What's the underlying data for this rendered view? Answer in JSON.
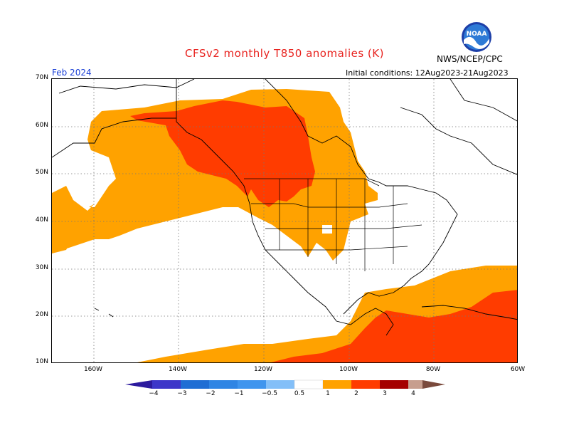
{
  "header": {
    "title": "CFSv2  monthly  T850  anomalies  (K)",
    "org": "NWS/NCEP/CPC",
    "month": "Feb 2024",
    "initial_conditions": "Initial conditions: 12Aug2023-21Aug2023"
  },
  "logo": {
    "text": "NOAA",
    "icon": "noaa-logo"
  },
  "axes": {
    "lat_labels": [
      "70N",
      "60N",
      "50N",
      "40N",
      "30N",
      "20N",
      "10N"
    ],
    "lon_labels": [
      "160W",
      "140W",
      "120W",
      "100W",
      "80W",
      "60W"
    ]
  },
  "colorbar": {
    "labels": [
      "−4",
      "−3",
      "−2",
      "−1",
      "−0.5",
      "0.5",
      "1",
      "2",
      "3",
      "4"
    ],
    "colors": [
      "#2c1a9e",
      "#3d36c9",
      "#1f6ed4",
      "#3f95ee",
      "#83bff8",
      "#ffffff",
      "#ffa200",
      "#ff3c00",
      "#a50000",
      "#c79e8e",
      "#7a4a3c"
    ]
  },
  "colors": {
    "anom_05_1": "#ffa200",
    "anom_1_2": "#ff3c00",
    "background": "#ffffff"
  }
}
